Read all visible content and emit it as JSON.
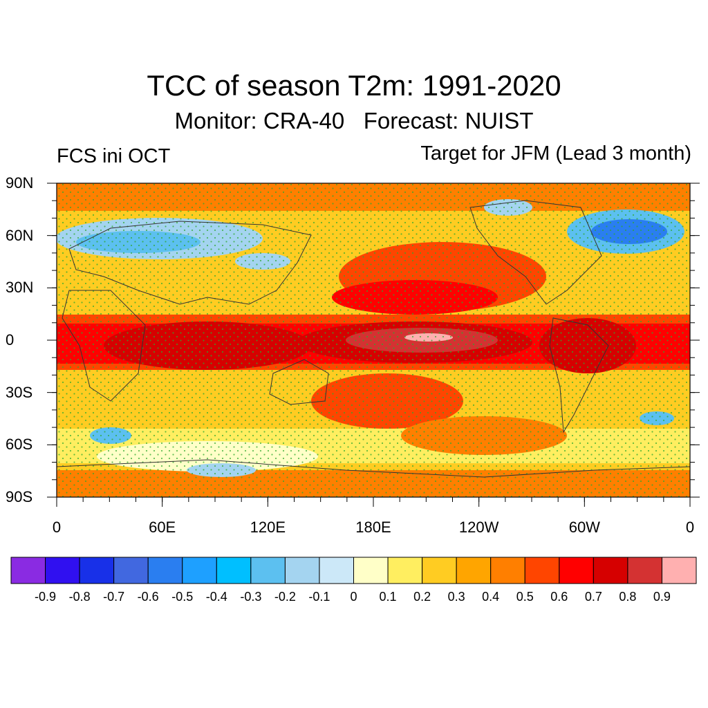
{
  "title": "TCC of season T2m: 1991-2020",
  "subtitle": "Monitor: CRA-40   Forecast: NUIST",
  "left_label": "FCS ini OCT",
  "right_label": "Target for JFM (Lead 3 month)",
  "lat_ticks": [
    "90N",
    "60N",
    "30N",
    "0",
    "30S",
    "60S",
    "90S"
  ],
  "lon_ticks": [
    "0",
    "60E",
    "120E",
    "180E",
    "120W",
    "60W",
    "0"
  ],
  "colorbar": {
    "colors": [
      "#8a2be2",
      "#3010f0",
      "#1830e8",
      "#4168e0",
      "#2a7ef0",
      "#1ea0ff",
      "#00bfff",
      "#5cc0f0",
      "#a4d4f0",
      "#cce8f8",
      "#ffffc8",
      "#ffee60",
      "#ffcc22",
      "#ffa500",
      "#ff7f00",
      "#ff4500",
      "#ff0000",
      "#d60000",
      "#d43232",
      "#ffb0b0"
    ],
    "labels": [
      "-0.9",
      "-0.8",
      "-0.7",
      "-0.6",
      "-0.5",
      "-0.4",
      "-0.3",
      "-0.2",
      "-0.1",
      "0",
      "0.1",
      "0.2",
      "0.3",
      "0.4",
      "0.5",
      "0.6",
      "0.7",
      "0.8",
      "0.9"
    ]
  }
}
